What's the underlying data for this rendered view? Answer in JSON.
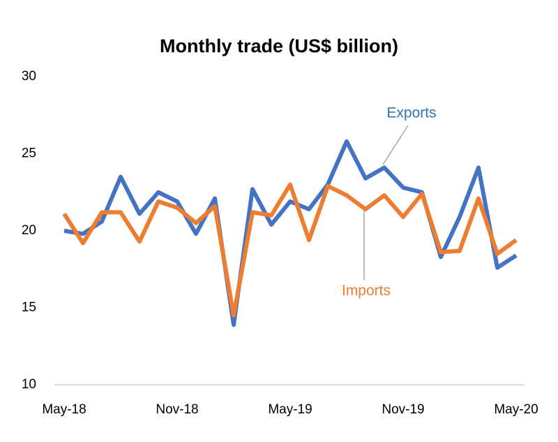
{
  "chart_data": {
    "type": "line",
    "title": "Monthly trade (US$ billion)",
    "categories": [
      "May-18",
      null,
      null,
      null,
      null,
      null,
      "Nov-18",
      null,
      null,
      null,
      null,
      null,
      "May-19",
      null,
      null,
      null,
      null,
      null,
      "Nov-19",
      null,
      null,
      null,
      null,
      null,
      "May-20"
    ],
    "series": [
      {
        "name": "Exports",
        "color": "#4472c4",
        "label_color": "#2e75b6",
        "values": [
          20.0,
          19.8,
          20.6,
          23.5,
          21.1,
          22.5,
          21.9,
          19.8,
          22.1,
          13.9,
          22.7,
          20.4,
          21.9,
          21.4,
          23.0,
          25.8,
          23.4,
          24.1,
          22.8,
          22.5,
          18.3,
          20.9,
          24.1,
          17.6,
          18.4
        ]
      },
      {
        "name": "Imports",
        "color": "#ed7d31",
        "label_color": "#ed7d31",
        "values": [
          21.1,
          19.2,
          21.2,
          21.2,
          19.3,
          21.9,
          21.5,
          20.5,
          21.6,
          14.5,
          21.2,
          21.0,
          23.0,
          19.4,
          22.9,
          22.3,
          21.4,
          22.3,
          20.9,
          22.4,
          18.6,
          18.7,
          22.1,
          18.5,
          19.4
        ]
      }
    ],
    "ylim": [
      10,
      30
    ],
    "yticks": [
      10,
      15,
      20,
      25,
      30
    ],
    "grid": false
  }
}
